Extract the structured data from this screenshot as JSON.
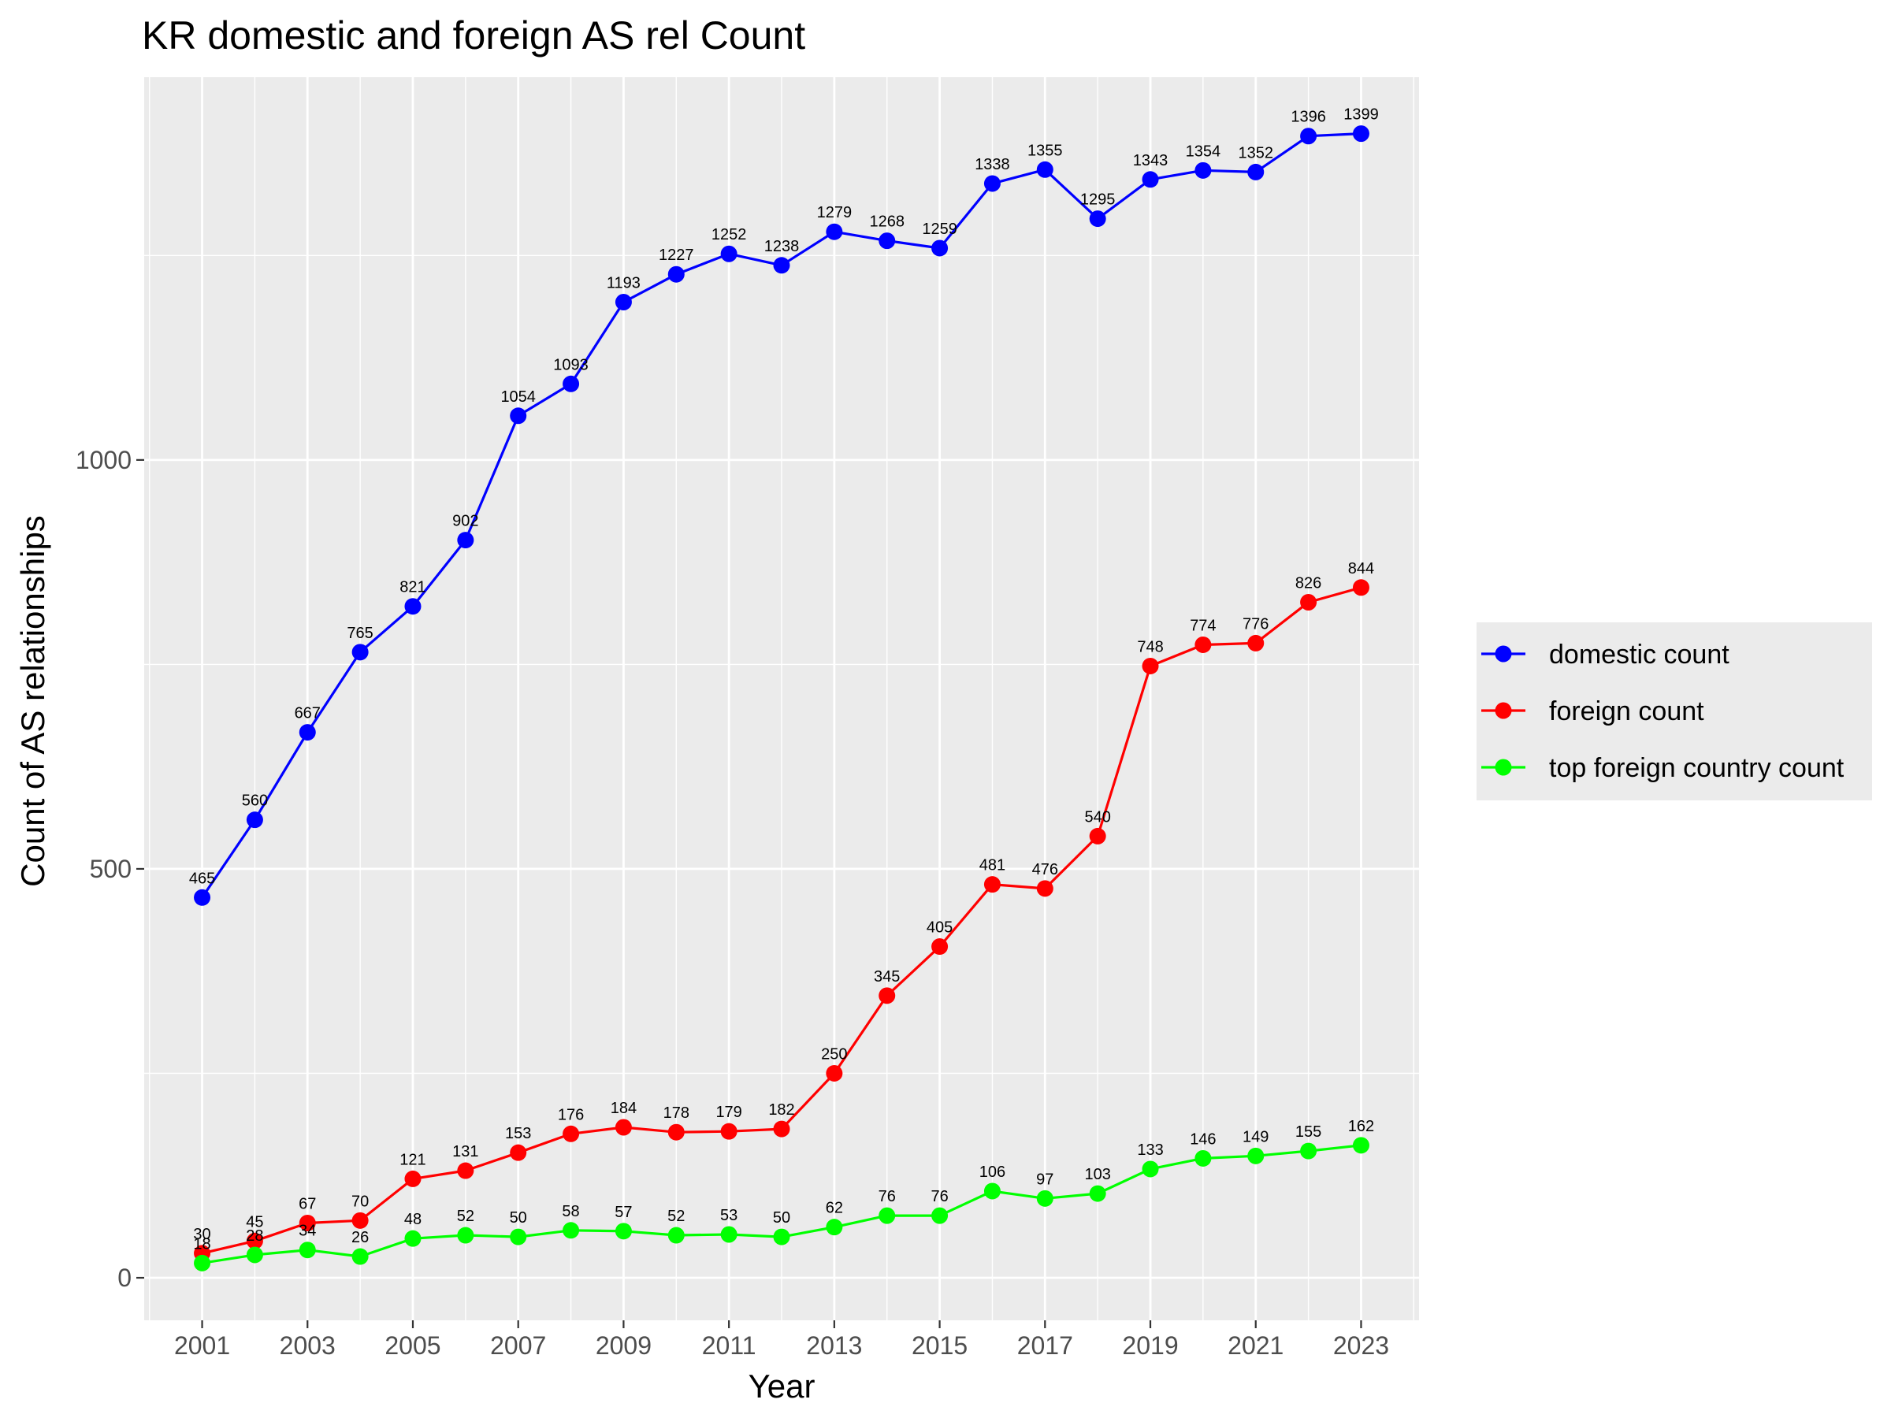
{
  "chart_data": {
    "type": "line",
    "title": "KR domestic and foreign AS rel Count",
    "xlabel": "Year",
    "ylabel": "Count of AS relationships",
    "x": [
      2001,
      2002,
      2003,
      2004,
      2005,
      2006,
      2007,
      2008,
      2009,
      2010,
      2011,
      2012,
      2013,
      2014,
      2015,
      2016,
      2017,
      2018,
      2019,
      2020,
      2021,
      2022,
      2023
    ],
    "x_ticks": [
      "2001",
      "2003",
      "2005",
      "2007",
      "2009",
      "2011",
      "2013",
      "2015",
      "2017",
      "2019",
      "2021",
      "2023"
    ],
    "y_ticks": [
      "0",
      "500",
      "1000"
    ],
    "xlim": [
      1999.9,
      2024.1
    ],
    "ylim": [
      -52,
      1468
    ],
    "grid": true,
    "legend_position": "right",
    "series": [
      {
        "name": "domestic count",
        "color": "#0000FF",
        "values": [
          465,
          560,
          667,
          765,
          821,
          902,
          1054,
          1093,
          1193,
          1227,
          1252,
          1238,
          1279,
          1268,
          1259,
          1338,
          1355,
          1295,
          1343,
          1354,
          1352,
          1396,
          1399
        ]
      },
      {
        "name": "foreign count",
        "color": "#FF0000",
        "values": [
          30,
          45,
          67,
          70,
          121,
          131,
          153,
          176,
          184,
          178,
          179,
          182,
          250,
          345,
          405,
          481,
          476,
          540,
          748,
          774,
          776,
          826,
          844
        ]
      },
      {
        "name": "top foreign country count",
        "color": "#00FF00",
        "values": [
          18,
          28,
          34,
          26,
          48,
          52,
          50,
          58,
          57,
          52,
          53,
          50,
          62,
          76,
          76,
          106,
          97,
          103,
          133,
          146,
          149,
          155,
          162
        ]
      }
    ],
    "colors": {
      "panel_background": "#EBEBEB",
      "grid_major": "#FFFFFF",
      "tick_text": "#4D4D4D"
    }
  }
}
